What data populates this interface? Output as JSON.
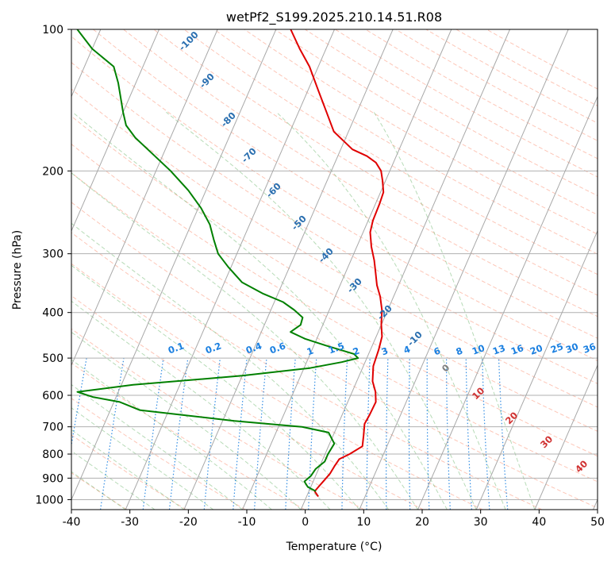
{
  "chart_data": {
    "type": "line",
    "title": "wetPf2_S199.2025.210.14.51.R08",
    "xlabel": "Temperature (°C)",
    "ylabel": "Pressure (hPa)",
    "x_ticks": [
      -40,
      -30,
      -20,
      -10,
      0,
      10,
      20,
      30,
      40,
      50
    ],
    "y_ticks": [
      100,
      200,
      300,
      400,
      500,
      600,
      700,
      800,
      900,
      1000
    ],
    "xlim": [
      -40,
      50
    ],
    "ylim": [
      1050,
      100
    ],
    "y_scale": "log",
    "grid": true,
    "skew_deg_per_decade": 35,
    "series": [
      {
        "color": "#e00000",
        "points": [
          [
            -37.5,
            100
          ],
          [
            -34.5,
            110
          ],
          [
            -31.5,
            120
          ],
          [
            -28.2,
            135
          ],
          [
            -25.2,
            150
          ],
          [
            -22.5,
            165
          ],
          [
            -18.0,
            180
          ],
          [
            -15.0,
            186
          ],
          [
            -13.0,
            192
          ],
          [
            -11.5,
            200
          ],
          [
            -10.5,
            210
          ],
          [
            -9.5,
            222
          ],
          [
            -9.3,
            235
          ],
          [
            -9.2,
            255
          ],
          [
            -8.8,
            270
          ],
          [
            -7.5,
            290
          ],
          [
            -6.0,
            310
          ],
          [
            -4.8,
            330
          ],
          [
            -3.7,
            350
          ],
          [
            -2.3,
            370
          ],
          [
            -1.0,
            395
          ],
          [
            0.0,
            425
          ],
          [
            1.0,
            450
          ],
          [
            1.4,
            480
          ],
          [
            1.7,
            520
          ],
          [
            2.7,
            560
          ],
          [
            4.0,
            590
          ],
          [
            4.8,
            620
          ],
          [
            4.7,
            660
          ],
          [
            4.5,
            690
          ],
          [
            5.2,
            730
          ],
          [
            5.8,
            770
          ],
          [
            4.2,
            800
          ],
          [
            2.8,
            820
          ],
          [
            2.5,
            850
          ],
          [
            2.3,
            880
          ],
          [
            1.8,
            910
          ],
          [
            1.3,
            940
          ],
          [
            1.0,
            960
          ],
          [
            2.0,
            985
          ]
        ]
      },
      {
        "color": "#008000",
        "points": [
          [
            -74.0,
            100
          ],
          [
            -70.0,
            110
          ],
          [
            -65.0,
            120
          ],
          [
            -63.0,
            130
          ],
          [
            -60.0,
            150
          ],
          [
            -58.5,
            160
          ],
          [
            -56.0,
            170
          ],
          [
            -53.0,
            180
          ],
          [
            -47.5,
            200
          ],
          [
            -43.0,
            220
          ],
          [
            -39.5,
            240
          ],
          [
            -36.8,
            260
          ],
          [
            -35.0,
            280
          ],
          [
            -33.2,
            300
          ],
          [
            -30.5,
            320
          ],
          [
            -27.0,
            345
          ],
          [
            -22.5,
            365
          ],
          [
            -18.5,
            380
          ],
          [
            -16.0,
            395
          ],
          [
            -14.0,
            410
          ],
          [
            -13.8,
            425
          ],
          [
            -15.0,
            440
          ],
          [
            -12.0,
            455
          ],
          [
            -8.0,
            470
          ],
          [
            -2.5,
            490
          ],
          [
            -1.5,
            500
          ],
          [
            -4.0,
            510
          ],
          [
            -9.0,
            525
          ],
          [
            -20.0,
            545
          ],
          [
            -38.0,
            570
          ],
          [
            -47.0,
            590
          ],
          [
            -44.0,
            605
          ],
          [
            -39.0,
            620
          ],
          [
            -35.0,
            645
          ],
          [
            -18.0,
            680
          ],
          [
            -6.0,
            700
          ],
          [
            -1.0,
            720
          ],
          [
            0.8,
            760
          ],
          [
            0.5,
            800
          ],
          [
            0.5,
            830
          ],
          [
            -0.5,
            860
          ],
          [
            -0.8,
            890
          ],
          [
            -1.5,
            915
          ],
          [
            -0.5,
            940
          ],
          [
            1.2,
            960
          ]
        ]
      }
    ],
    "dry_adiabat_labels": [
      "-100",
      "-90",
      "-80",
      "-70",
      "-60",
      "-50",
      "-40",
      "-30",
      "-20",
      "-10"
    ],
    "moist_adiabat_labels": [
      "0",
      "10",
      "20",
      "30",
      "40"
    ],
    "mixing_ratio_labels": [
      "0.1",
      "0.2",
      "0.4",
      "0.6",
      "1",
      "1.5",
      "2",
      "3",
      "4",
      "6",
      "8",
      "10",
      "13",
      "16",
      "20",
      "25",
      "30",
      "36"
    ]
  }
}
